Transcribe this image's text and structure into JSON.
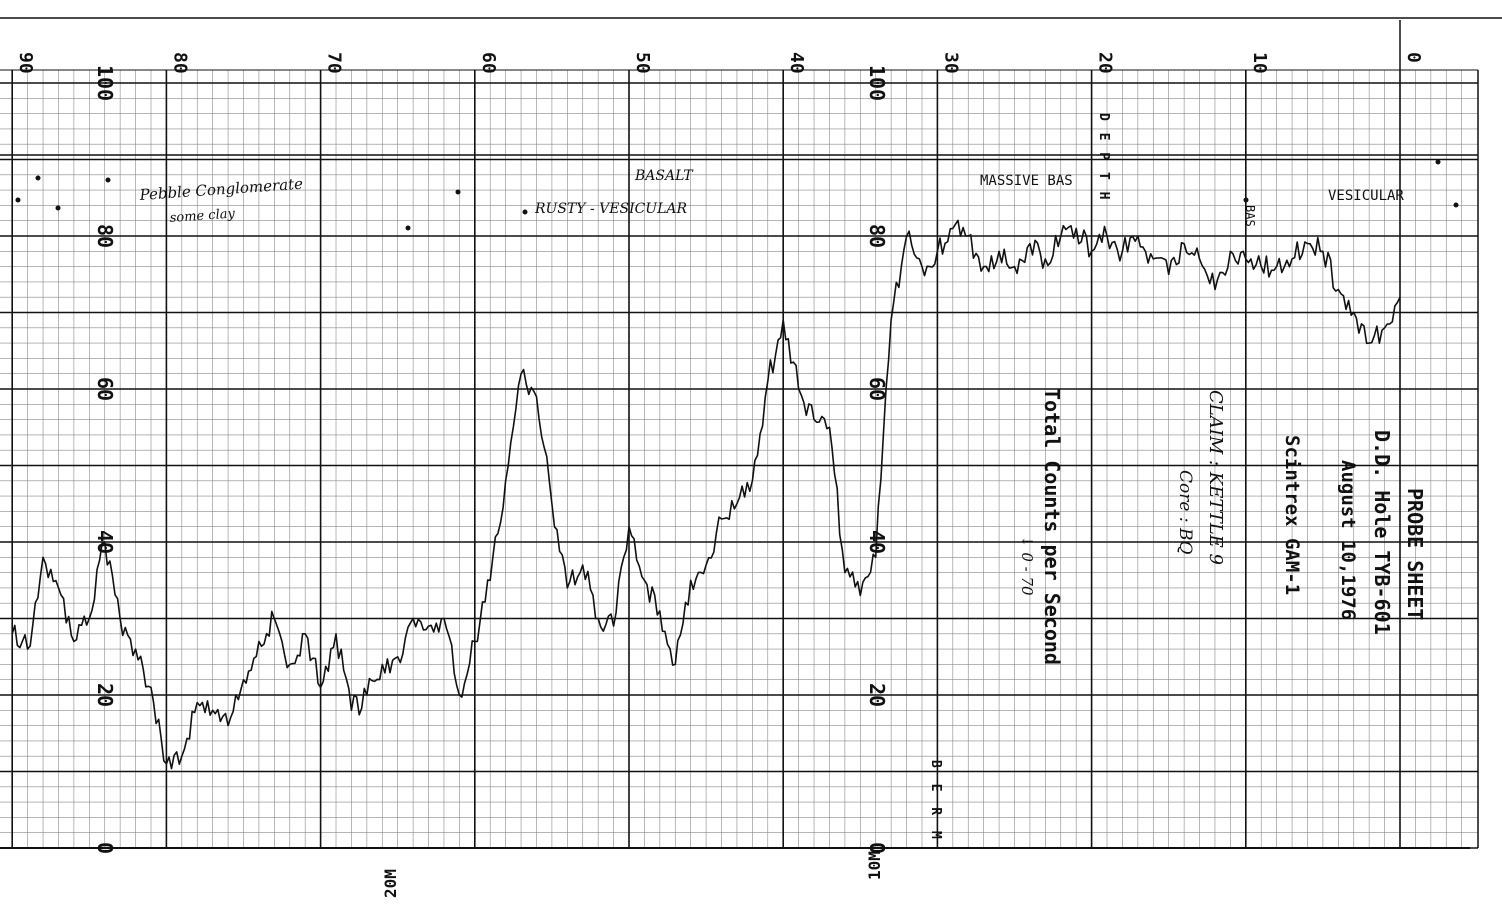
{
  "colors": {
    "paper": "#ffffff",
    "ink": "#111111",
    "grid_minor": "#8a8a8a",
    "grid_major": "#111111"
  },
  "header": {
    "title": "PROBE SHEET",
    "hole": "D.D. Hole TYB-601",
    "date": "August 10,1976",
    "instrument": "Scintrex GAM-1",
    "claim": "CLAIM : KETTLE 9",
    "core": "Core : BQ",
    "ylabel": "Total Counts per Second",
    "scale_note": "↓ 0 - 70"
  },
  "depth_ticks": [
    "0",
    "10",
    "20",
    "30",
    "40",
    "50",
    "60",
    "70",
    "80",
    "90"
  ],
  "count_ticks_right": [
    "0",
    "20",
    "40",
    "60",
    "80",
    "100"
  ],
  "count_ticks_left": [
    "0",
    "20",
    "40",
    "60",
    "80",
    "100"
  ],
  "depth_markers": {
    "ten_m": "10M",
    "twenty_m": "20M"
  },
  "lithology": [
    {
      "label": "Pebble Conglomerate",
      "sub": "some clay"
    },
    {
      "label": "RUSTY - VESICULAR",
      "sub": "BASALT"
    },
    {
      "label": "MASSIVE BAS"
    },
    {
      "label": "BAS"
    },
    {
      "label": "VESICULAR"
    }
  ],
  "side_letters": "D E P T H",
  "bottom_letters": "B E R M",
  "chart_data": {
    "type": "line",
    "title": "PROBE SHEET",
    "xlabel": "",
    "ylabel": "Total Counts per Second",
    "xlim": [
      0,
      90
    ],
    "ylim": [
      0,
      100
    ],
    "x_reversed": true,
    "grid": true,
    "x": [
      0,
      1,
      2,
      3,
      4,
      5,
      6,
      7,
      8,
      9,
      10,
      11,
      12,
      13,
      14,
      15,
      16,
      17,
      18,
      19,
      20,
      21,
      22,
      23,
      24,
      25,
      26,
      27,
      28,
      29,
      30,
      31,
      32,
      33,
      34,
      35,
      36,
      37,
      38,
      39,
      40,
      41,
      42,
      43,
      44,
      45,
      46,
      47,
      48,
      49,
      50,
      51,
      52,
      53,
      54,
      55,
      56,
      57,
      58,
      59,
      60,
      61,
      62,
      63,
      64,
      65,
      66,
      67,
      68,
      69,
      70,
      71,
      72,
      73,
      74,
      75,
      76,
      77,
      78,
      79,
      80,
      81,
      82,
      83,
      84,
      85,
      86,
      87,
      88,
      89,
      90
    ],
    "series": [
      {
        "values": [
          72,
          68,
          66,
          70,
          73,
          78,
          79,
          77,
          76,
          76,
          77,
          78,
          73,
          77,
          79,
          75,
          77,
          80,
          78,
          80,
          78,
          81,
          80,
          77,
          79,
          76,
          78,
          76,
          80,
          81,
          78,
          76,
          80,
          69,
          38,
          33,
          36,
          55,
          56,
          60,
          69,
          61,
          48,
          45,
          43,
          37,
          35,
          24,
          31,
          35,
          42,
          29,
          30,
          37,
          34,
          45,
          59,
          62,
          48,
          35,
          27,
          20,
          30,
          29,
          30,
          25,
          24,
          20,
          18,
          28,
          21,
          28,
          24,
          30,
          27,
          22,
          16,
          18,
          19,
          12,
          11,
          21,
          26,
          30,
          40,
          30,
          27,
          34,
          38,
          26,
          28
        ]
      }
    ]
  }
}
